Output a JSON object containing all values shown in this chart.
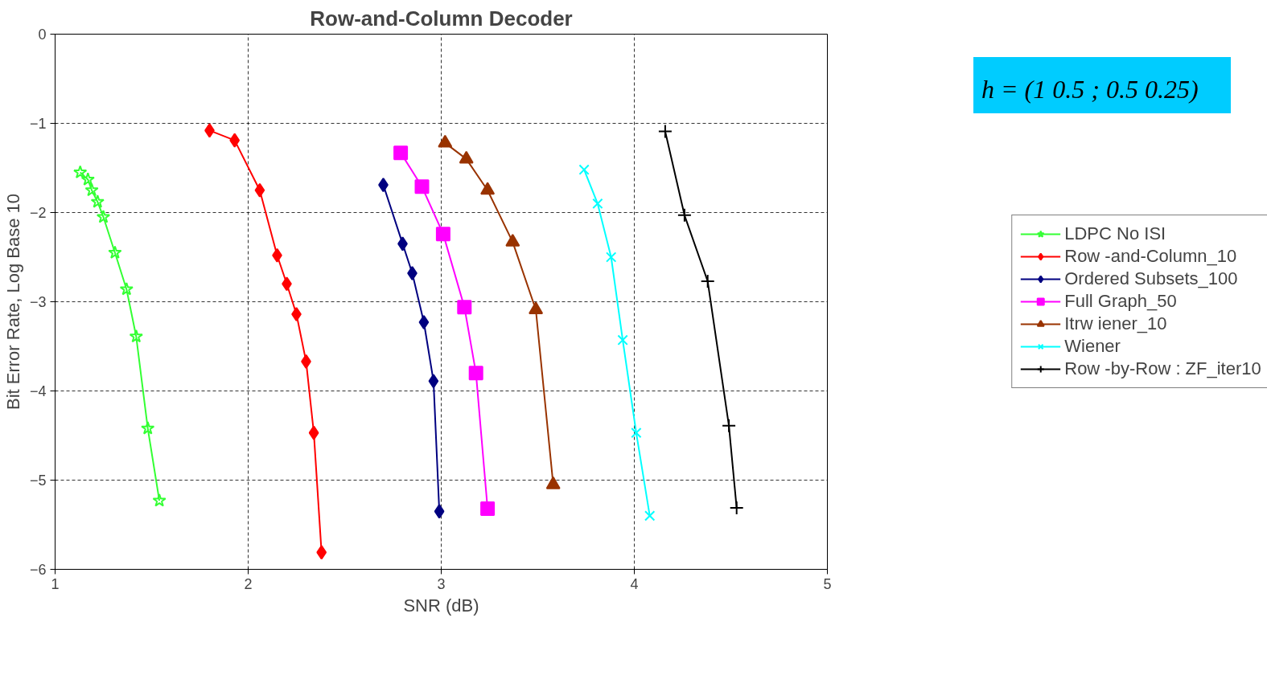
{
  "chart_data": {
    "type": "line",
    "title": "Row-and-Column Decoder",
    "xlabel": "SNR (dB)",
    "ylabel": "Bit Error Rate, Log Base 10",
    "xlim": [
      1,
      5
    ],
    "xticks": [
      1,
      2,
      3,
      4,
      5
    ],
    "ylim": [
      -6,
      0
    ],
    "yticks": [
      -6,
      -5,
      -4,
      -3,
      -2,
      -1,
      0
    ],
    "grid": true,
    "legend": "right",
    "line_style": "solid",
    "annotations": [
      "h = (1  0.5 ; 0.5  0.25)"
    ],
    "series": [
      {
        "name": "LDPC No ISI",
        "color": "#33ff33",
        "marker": "star",
        "x": [
          1.13,
          1.17,
          1.19,
          1.22,
          1.25,
          1.31,
          1.37,
          1.42,
          1.48,
          1.54
        ],
        "values": [
          -1.55,
          -1.63,
          -1.75,
          -1.88,
          -2.05,
          -2.45,
          -2.86,
          -3.39,
          -4.42,
          -5.23
        ]
      },
      {
        "name": "Row -and-Column_10",
        "color": "#ff0000",
        "marker": "diamond",
        "x": [
          1.8,
          1.93,
          2.06,
          2.15,
          2.2,
          2.25,
          2.3,
          2.34,
          2.38
        ],
        "values": [
          -1.08,
          -1.19,
          -1.75,
          -2.48,
          -2.8,
          -3.14,
          -3.67,
          -4.47,
          -5.81
        ]
      },
      {
        "name": "Ordered Subsets_100",
        "color": "#000080",
        "marker": "diamond",
        "x": [
          2.7,
          2.8,
          2.85,
          2.91,
          2.96,
          2.99
        ],
        "values": [
          -1.69,
          -2.35,
          -2.68,
          -3.23,
          -3.89,
          -5.35
        ]
      },
      {
        "name": "Full Graph_50",
        "color": "#ff00ff",
        "marker": "square",
        "x": [
          2.79,
          2.9,
          3.01,
          3.12,
          3.18,
          3.24
        ],
        "values": [
          -1.33,
          -1.71,
          -2.24,
          -3.06,
          -3.8,
          -5.32
        ]
      },
      {
        "name": "Itrw iener_10",
        "color": "#993300",
        "marker": "triangle",
        "x": [
          3.02,
          3.13,
          3.24,
          3.37,
          3.49,
          3.58
        ],
        "values": [
          -1.22,
          -1.4,
          -1.75,
          -2.33,
          -3.09,
          -5.05
        ]
      },
      {
        "name": "Wiener",
        "color": "#00ffff",
        "marker": "x",
        "x": [
          3.74,
          3.81,
          3.88,
          3.94,
          4.01,
          4.08
        ],
        "values": [
          -1.52,
          -1.9,
          -2.5,
          -3.43,
          -4.47,
          -5.4
        ]
      },
      {
        "name": "Row -by-Row : ZF_iter10",
        "color": "#000000",
        "marker": "cross",
        "x": [
          4.16,
          4.26,
          4.38,
          4.49,
          4.53
        ],
        "values": [
          -1.09,
          -2.03,
          -2.77,
          -4.39,
          -5.31
        ]
      }
    ]
  }
}
